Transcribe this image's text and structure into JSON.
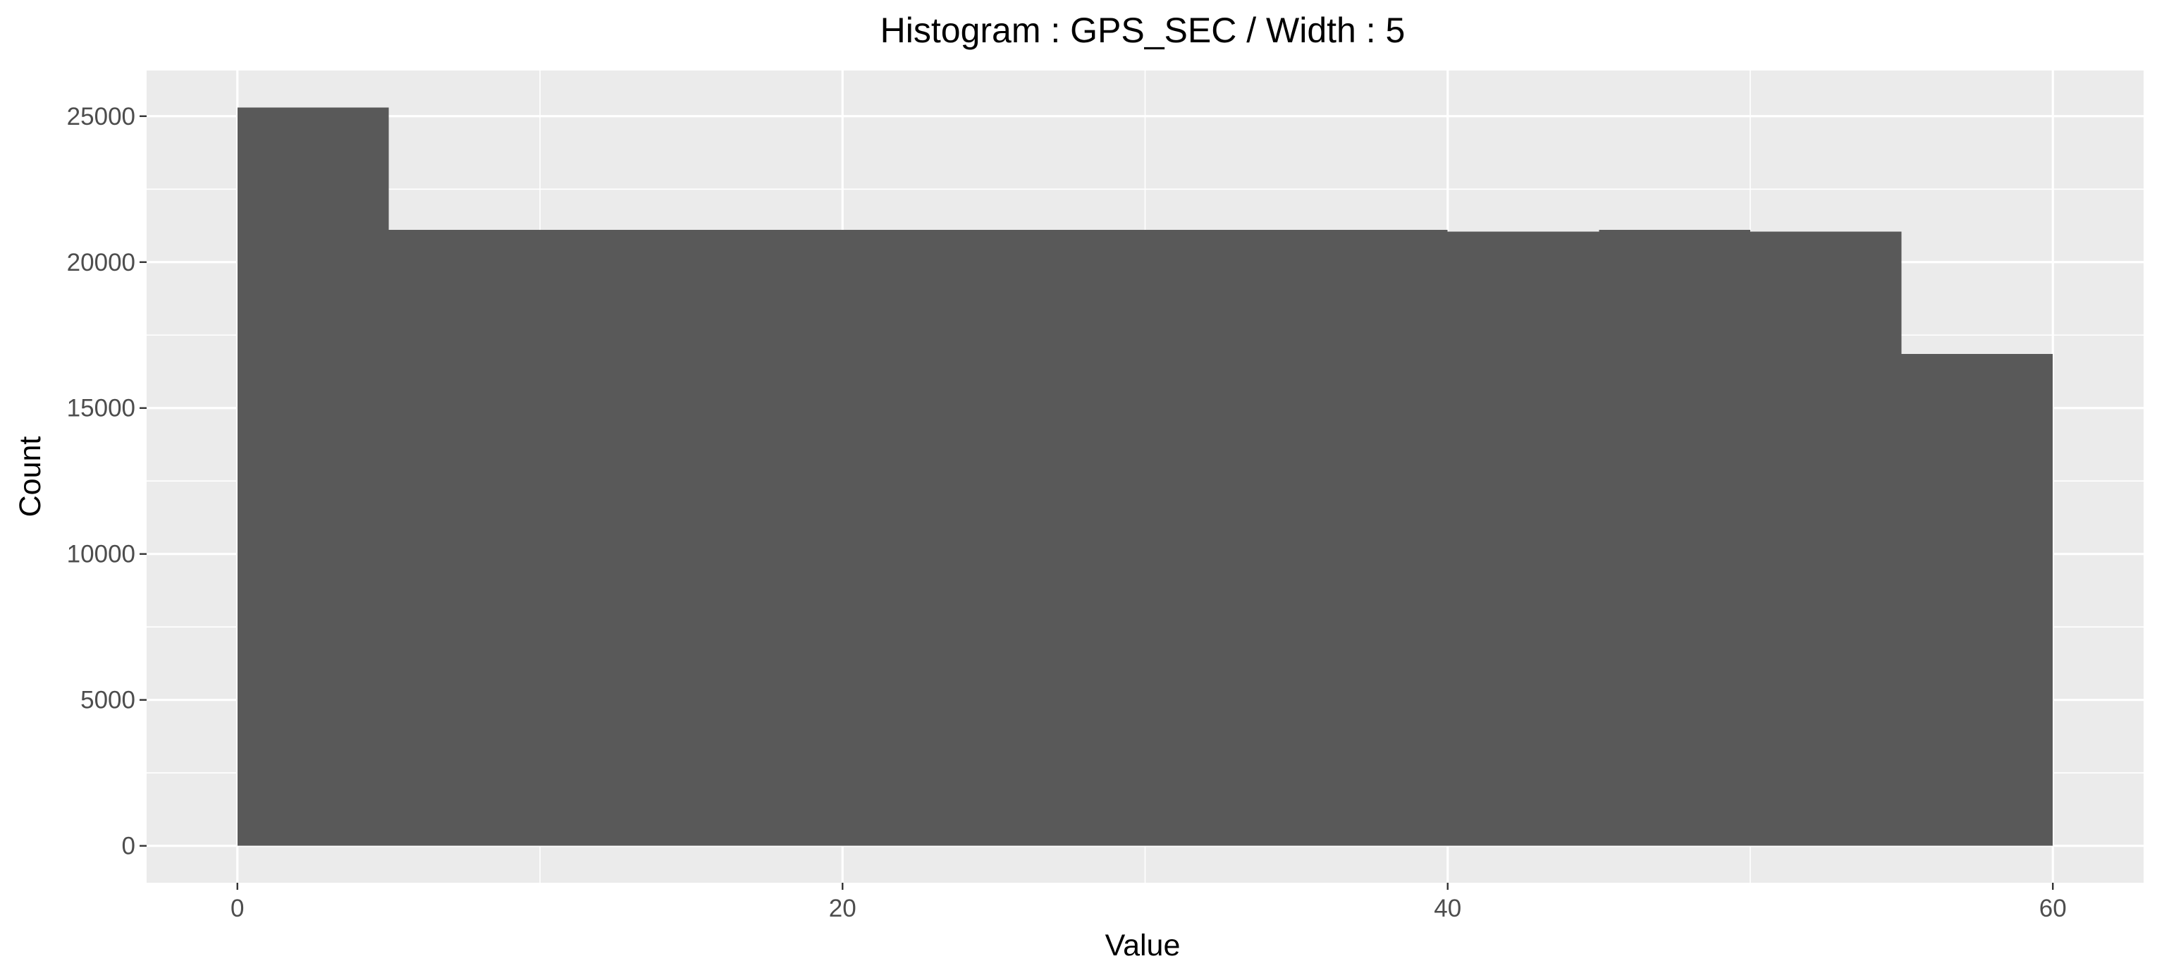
{
  "chart_data": {
    "type": "bar",
    "title": "Histogram : GPS_SEC / Width : 5",
    "xlabel": "Value",
    "ylabel": "Count",
    "bin_width": 5,
    "bins": [
      {
        "x0": 0,
        "x1": 5,
        "count": 25300
      },
      {
        "x0": 5,
        "x1": 10,
        "count": 21100
      },
      {
        "x0": 10,
        "x1": 15,
        "count": 21100
      },
      {
        "x0": 15,
        "x1": 20,
        "count": 21100
      },
      {
        "x0": 20,
        "x1": 25,
        "count": 21100
      },
      {
        "x0": 25,
        "x1": 30,
        "count": 21100
      },
      {
        "x0": 30,
        "x1": 35,
        "count": 21100
      },
      {
        "x0": 35,
        "x1": 40,
        "count": 21100
      },
      {
        "x0": 40,
        "x1": 45,
        "count": 21050
      },
      {
        "x0": 45,
        "x1": 50,
        "count": 21100
      },
      {
        "x0": 50,
        "x1": 55,
        "count": 21050
      },
      {
        "x0": 55,
        "x1": 60,
        "count": 16850
      }
    ],
    "xlim": [
      -3,
      63
    ],
    "ylim": [
      -1265,
      26565
    ],
    "x_ticks": [
      0,
      20,
      40,
      60
    ],
    "x_minor_ticks": [
      10,
      30,
      50
    ],
    "y_ticks": [
      0,
      5000,
      10000,
      15000,
      20000,
      25000
    ],
    "y_minor_ticks": [
      2500,
      7500,
      12500,
      17500,
      22500
    ],
    "grid": true,
    "colors": {
      "bar": "#595959",
      "panel_background": "#ebebeb",
      "grid": "#ffffff",
      "tick_text": "#4d4d4d",
      "tick_mark": "#333333"
    }
  }
}
